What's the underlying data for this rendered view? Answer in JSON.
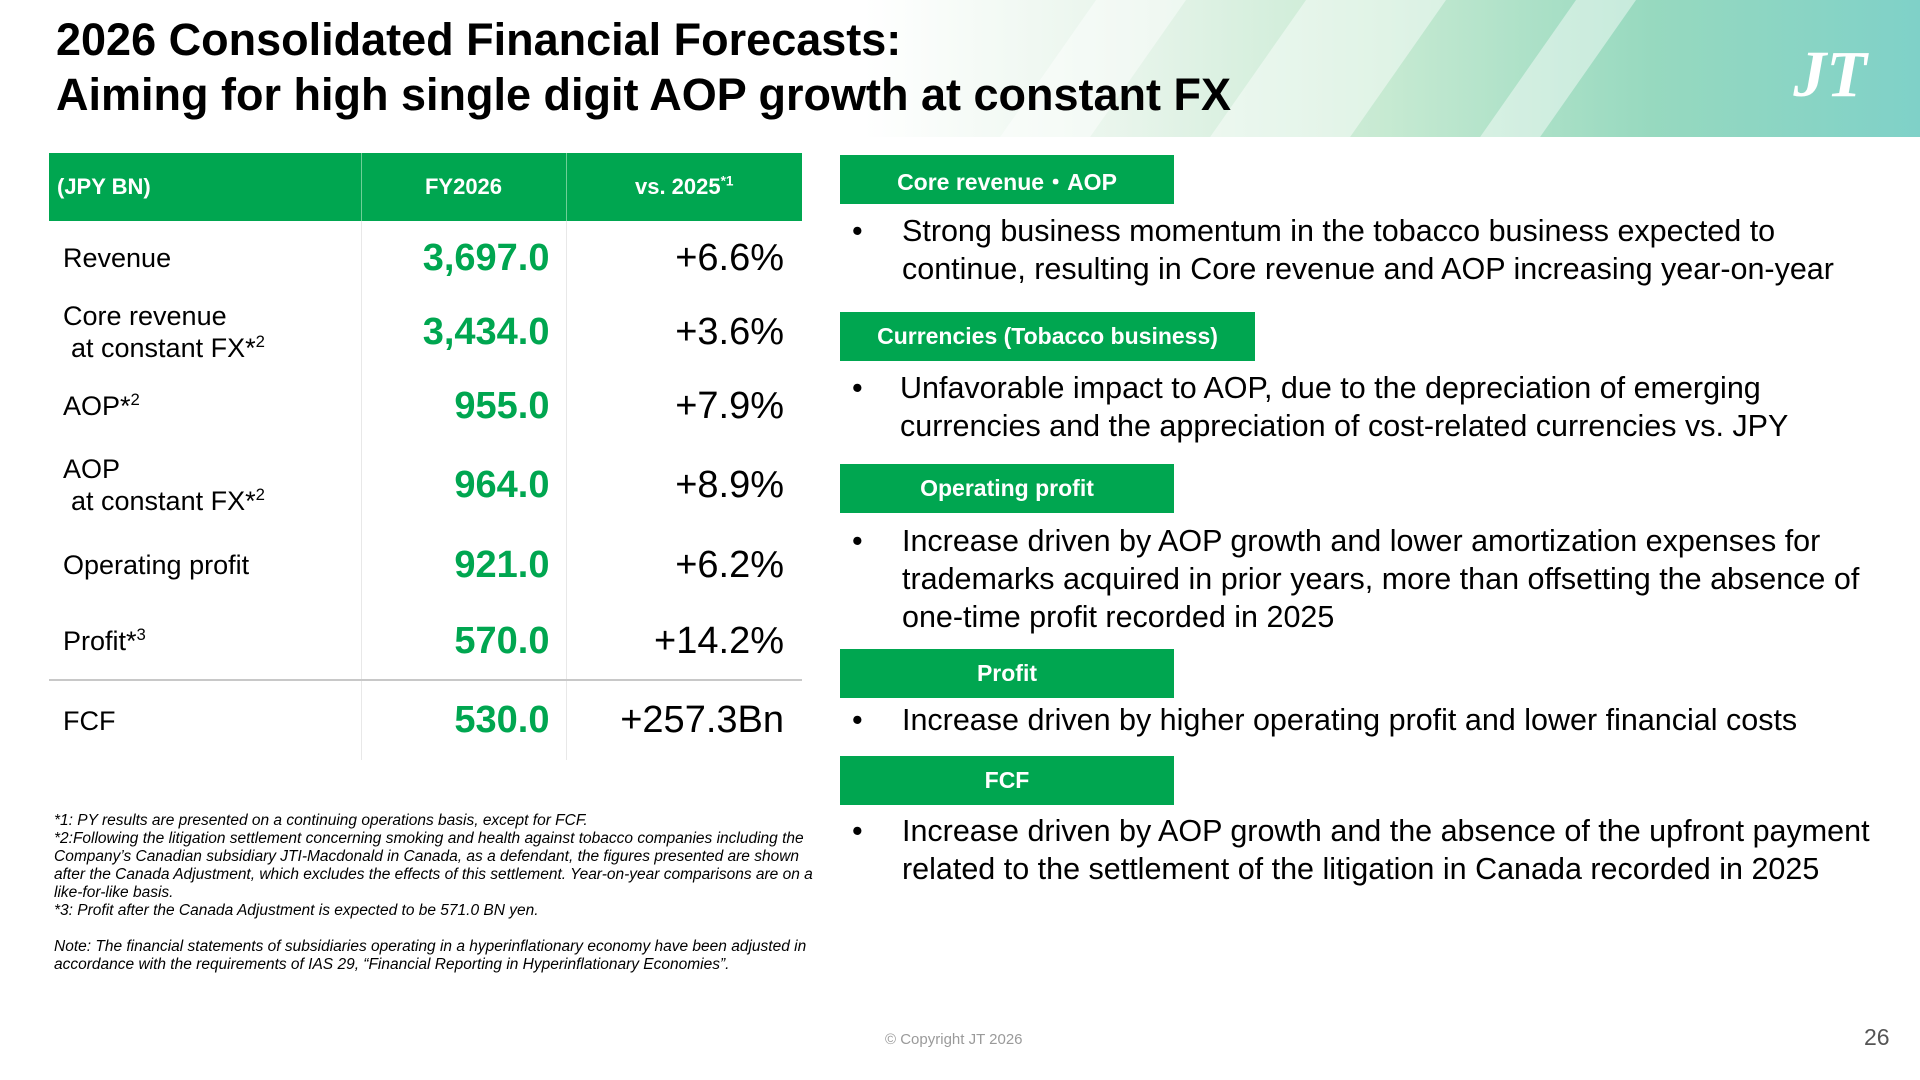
{
  "header": {
    "title_line1": "2026 Consolidated Financial Forecasts:",
    "title_line2": "Aiming for high single digit AOP growth at constant FX",
    "logo_text": "JT",
    "accent_color": "#00a650"
  },
  "table": {
    "headers": {
      "col1": "(JPY BN)",
      "col2": "FY2026",
      "col3": "vs. 2025",
      "col3_sup": "*1"
    },
    "rows": [
      {
        "label": "Revenue",
        "sub": "",
        "sup": "",
        "value": "3,697.0",
        "change": "+6.6%"
      },
      {
        "label": "Core revenue",
        "sub": "at constant FX*",
        "sup": "2",
        "value": "3,434.0",
        "change": "+3.6%"
      },
      {
        "label": "AOP*",
        "sub": "",
        "sup": "2",
        "value": "955.0",
        "change": "+7.9%"
      },
      {
        "label": "AOP",
        "sub": "at constant FX*",
        "sup": "2",
        "value": "964.0",
        "change": "+8.9%"
      },
      {
        "label": "Operating profit",
        "sub": "",
        "sup": "",
        "value": "921.0",
        "change": "+6.2%"
      },
      {
        "label": "Profit*",
        "sub": "",
        "sup": "3",
        "value": "570.0",
        "change": "+14.2%"
      },
      {
        "label": "FCF",
        "sub": "",
        "sup": "",
        "value": "530.0",
        "change": "+257.3Bn"
      }
    ]
  },
  "footnotes": {
    "note1": "*1: PY results are presented on a continuing operations basis, except for FCF.",
    "note2": "*2:Following the litigation settlement concerning smoking and health against tobacco companies including the Company’s Canadian subsidiary JTI-Macdonald in Canada, as a defendant, the figures presented are shown after the Canada Adjustment, which excludes the effects of this settlement. Year-on-year comparisons are on a like-for-like basis.",
    "note3": "*3: Profit after the Canada Adjustment is expected to be 571.0 BN yen.",
    "note4": "Note: The financial statements of subsidiaries operating in a hyperinflationary economy have been adjusted in accordance with the requirements of IAS 29, “Financial Reporting in Hyperinflationary Economies”."
  },
  "sections": [
    {
      "tag": "Core revenue・AOP",
      "bullet": "Strong business momentum in the tobacco business expected to continue, resulting in Core revenue and AOP increasing year-on-year"
    },
    {
      "tag": "Currencies (Tobacco business)",
      "bullet": "Unfavorable impact to AOP, due to the depreciation of emerging currencies and the appreciation of cost-related currencies vs. JPY"
    },
    {
      "tag": "Operating profit",
      "bullet": "Increase driven by AOP growth and lower amortization expenses for trademarks acquired in prior years, more than offsetting the absence of one-time profit recorded in 2025"
    },
    {
      "tag": "Profit",
      "bullet": "Increase driven by higher operating profit and lower financial costs"
    },
    {
      "tag": "FCF",
      "bullet": "Increase driven by AOP growth and the absence of the upfront payment related to the settlement of the litigation in Canada recorded in 2025"
    }
  ],
  "bullet_char": "•",
  "footer": {
    "copyright": "© Copyright JT 2026",
    "page_number": "26"
  }
}
